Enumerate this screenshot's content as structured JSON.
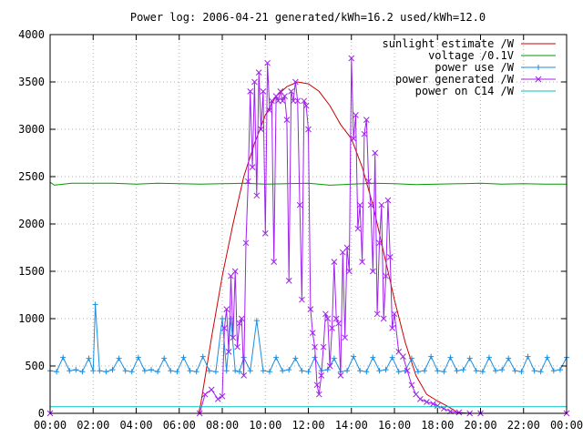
{
  "chart_data": {
    "type": "line",
    "title": "Power log: 2006-04-21 generated/kWh=16.2 used/kWh=12.0",
    "xlabel": "",
    "ylabel": "",
    "x_ticks": [
      "00:00",
      "02:00",
      "04:00",
      "06:00",
      "08:00",
      "10:00",
      "12:00",
      "14:00",
      "16:00",
      "18:00",
      "20:00",
      "22:00",
      "00:00"
    ],
    "y_ticks": [
      "0",
      "500",
      "1000",
      "1500",
      "2000",
      "2500",
      "3000",
      "3500",
      "4000"
    ],
    "xlim_hours": [
      0,
      24
    ],
    "ylim": [
      0,
      4000
    ],
    "grid": true,
    "legend_position": "top-right",
    "series": [
      {
        "name": "sunlight estimate /W",
        "color": "#cc0000",
        "marker": "none",
        "x": [
          6.9,
          7.0,
          7.5,
          8.0,
          8.5,
          9.0,
          9.5,
          10.0,
          10.5,
          11.0,
          11.5,
          12.0,
          12.5,
          13.0,
          13.5,
          14.0,
          14.5,
          15.0,
          15.5,
          16.0,
          16.5,
          17.0,
          17.5,
          18.0,
          18.5,
          19.0
        ],
        "y": [
          0,
          100,
          800,
          1450,
          2000,
          2500,
          2850,
          3150,
          3350,
          3450,
          3500,
          3480,
          3400,
          3250,
          3050,
          2900,
          2600,
          2200,
          1700,
          1200,
          750,
          400,
          200,
          130,
          70,
          0
        ]
      },
      {
        "name": "voltage /0.1V",
        "color": "#009900",
        "marker": "none",
        "x": [
          0,
          0.2,
          1,
          2,
          3,
          4,
          5,
          6,
          7,
          8,
          9,
          10,
          11,
          12,
          13,
          14,
          15,
          16,
          17,
          18,
          19,
          20,
          21,
          22,
          23,
          24
        ],
        "y": [
          2440,
          2410,
          2430,
          2430,
          2430,
          2420,
          2430,
          2425,
          2420,
          2425,
          2430,
          2420,
          2425,
          2430,
          2410,
          2420,
          2430,
          2425,
          2415,
          2420,
          2425,
          2430,
          2420,
          2425,
          2420,
          2420
        ]
      },
      {
        "name": "power use /W",
        "color": "#1a8ee0",
        "marker": "plus",
        "x": [
          0,
          0.3,
          0.6,
          0.9,
          1.2,
          1.5,
          1.8,
          2.0,
          2.1,
          2.3,
          2.6,
          2.9,
          3.2,
          3.5,
          3.8,
          4.1,
          4.4,
          4.7,
          5.0,
          5.3,
          5.6,
          5.9,
          6.2,
          6.5,
          6.8,
          7.1,
          7.4,
          7.7,
          8.0,
          8.2,
          8.4,
          8.6,
          8.8,
          9.0,
          9.3,
          9.6,
          9.9,
          10.2,
          10.5,
          10.8,
          11.1,
          11.4,
          11.7,
          12.0,
          12.3,
          12.6,
          12.9,
          13.2,
          13.5,
          13.8,
          14.1,
          14.4,
          14.7,
          15.0,
          15.3,
          15.6,
          15.9,
          16.2,
          16.5,
          16.8,
          17.1,
          17.4,
          17.7,
          18.0,
          18.3,
          18.6,
          18.9,
          19.2,
          19.5,
          19.8,
          20.1,
          20.4,
          20.7,
          21.0,
          21.3,
          21.6,
          21.9,
          22.2,
          22.5,
          22.8,
          23.1,
          23.4,
          23.7,
          24.0
        ],
        "y": [
          450,
          440,
          590,
          450,
          460,
          440,
          580,
          450,
          1150,
          450,
          440,
          460,
          580,
          450,
          440,
          590,
          450,
          460,
          440,
          580,
          450,
          440,
          590,
          450,
          440,
          600,
          450,
          440,
          1000,
          450,
          1000,
          450,
          440,
          590,
          450,
          980,
          450,
          440,
          590,
          450,
          460,
          580,
          450,
          440,
          590,
          450,
          460,
          580,
          440,
          450,
          600,
          450,
          440,
          590,
          450,
          460,
          590,
          440,
          450,
          580,
          440,
          450,
          600,
          450,
          440,
          590,
          450,
          460,
          580,
          450,
          440,
          590,
          450,
          460,
          580,
          450,
          440,
          600,
          450,
          440,
          590,
          450,
          460,
          590
        ]
      },
      {
        "name": "power generated /W",
        "color": "#a020f0",
        "marker": "x",
        "x": [
          0,
          6.95,
          7.2,
          7.5,
          7.8,
          8.0,
          8.1,
          8.2,
          8.3,
          8.4,
          8.5,
          8.6,
          8.7,
          8.8,
          8.9,
          9.0,
          9.1,
          9.2,
          9.3,
          9.4,
          9.5,
          9.6,
          9.7,
          9.8,
          9.9,
          10.0,
          10.1,
          10.2,
          10.3,
          10.4,
          10.5,
          10.6,
          10.7,
          10.8,
          10.9,
          11.0,
          11.1,
          11.2,
          11.3,
          11.4,
          11.5,
          11.6,
          11.7,
          11.8,
          11.9,
          12.0,
          12.1,
          12.2,
          12.3,
          12.4,
          12.5,
          12.6,
          12.7,
          12.8,
          12.9,
          13.0,
          13.1,
          13.2,
          13.3,
          13.4,
          13.5,
          13.6,
          13.7,
          13.8,
          13.9,
          14.0,
          14.1,
          14.2,
          14.3,
          14.4,
          14.5,
          14.6,
          14.7,
          14.8,
          14.9,
          15.0,
          15.1,
          15.2,
          15.3,
          15.4,
          15.5,
          15.6,
          15.7,
          15.8,
          15.9,
          16.0,
          16.2,
          16.4,
          16.6,
          16.8,
          17.0,
          17.2,
          17.5,
          17.8,
          18.0,
          18.3,
          18.6,
          19.0,
          19.5,
          20.0,
          24.0
        ],
        "y": [
          0,
          0,
          200,
          250,
          150,
          180,
          900,
          1100,
          650,
          1450,
          800,
          1500,
          700,
          950,
          1000,
          400,
          1800,
          2450,
          3400,
          2600,
          3500,
          2300,
          3600,
          3000,
          3400,
          1900,
          3700,
          3200,
          3300,
          1600,
          3350,
          3300,
          3400,
          3300,
          3350,
          3100,
          1400,
          3400,
          3300,
          3500,
          3300,
          2200,
          1200,
          3300,
          3250,
          3000,
          1100,
          850,
          700,
          300,
          200,
          400,
          700,
          1050,
          1000,
          500,
          900,
          1600,
          1000,
          950,
          400,
          1700,
          800,
          1750,
          1500,
          3750,
          2900,
          3150,
          1950,
          2200,
          1600,
          2950,
          3100,
          2450,
          2200,
          1500,
          2750,
          1050,
          1800,
          2200,
          1000,
          1450,
          2250,
          1650,
          900,
          1050,
          650,
          600,
          450,
          300,
          200,
          150,
          120,
          100,
          80,
          50,
          20,
          10,
          0,
          0,
          0
        ]
      },
      {
        "name": "power on C14 /W",
        "color": "#00c0c0",
        "marker": "none",
        "x": [
          0,
          24
        ],
        "y": [
          70,
          70
        ]
      }
    ]
  }
}
